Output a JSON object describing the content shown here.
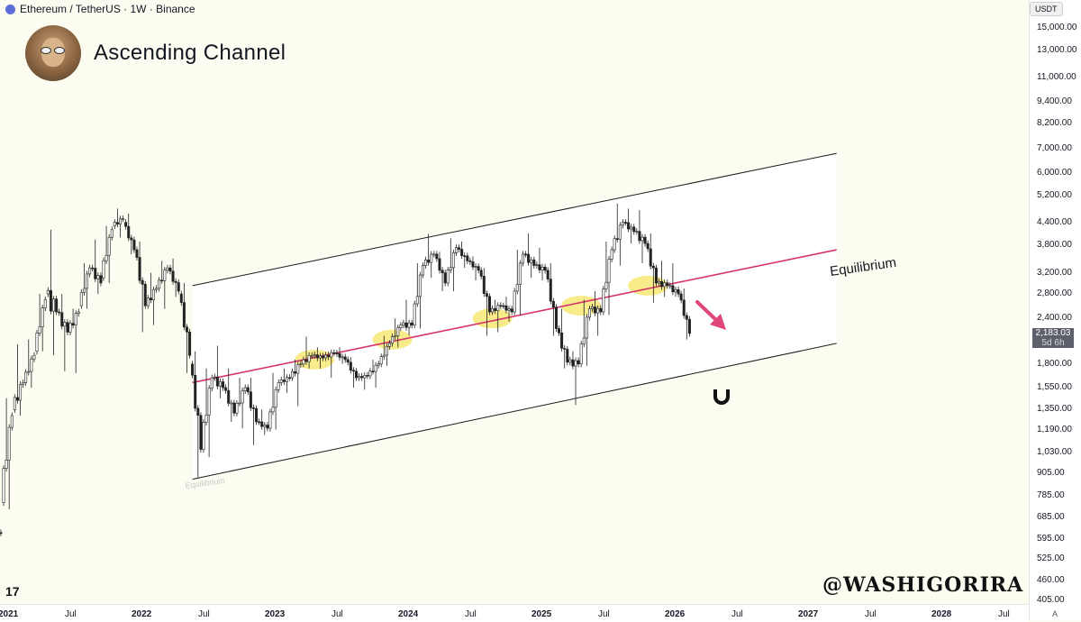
{
  "header": {
    "symbol_line": "Ethereum / TetherUS · 1W · Binance",
    "title": "Ascending Channel"
  },
  "watermark": "@WASHIGORIRA",
  "tv_logo": "17",
  "price_axis": {
    "unit": "USDT",
    "labels": [
      "15,000.00",
      "13,000.00",
      "11,000.00",
      "9,400.00",
      "8,200.00",
      "7,000.00",
      "6,000.00",
      "5,200.00",
      "4,400.00",
      "3,800.00",
      "3,200.00",
      "2,800.00",
      "2,400.00",
      "1,800.00",
      "1,550.00",
      "1,350.00",
      "1,190.00",
      "1,030.00",
      "905.00",
      "785.00",
      "685.00",
      "595.00",
      "525.00",
      "460.00",
      "405.00"
    ],
    "current_price": "2,183.03",
    "countdown": "5d 6h",
    "auto": "A"
  },
  "time_axis": {
    "labels": [
      {
        "text": "2021",
        "year": true
      },
      {
        "text": "Jul",
        "year": false
      },
      {
        "text": "2022",
        "year": true
      },
      {
        "text": "Jul",
        "year": false
      },
      {
        "text": "2023",
        "year": true
      },
      {
        "text": "Jul",
        "year": false
      },
      {
        "text": "2024",
        "year": true
      },
      {
        "text": "Jul",
        "year": false
      },
      {
        "text": "2025",
        "year": true
      },
      {
        "text": "Jul",
        "year": false
      },
      {
        "text": "2026",
        "year": true
      },
      {
        "text": "Jul",
        "year": false
      },
      {
        "text": "2027",
        "year": true
      },
      {
        "text": "Jul",
        "year": false
      },
      {
        "text": "2028",
        "year": true
      },
      {
        "text": "Jul",
        "year": false
      }
    ]
  },
  "colors": {
    "background": "#fdfcf1",
    "channel_line": "#1a1a1a",
    "channel_fill": "#ffffff",
    "equilibrium_line": "#d6336c",
    "highlight": "#f5e663",
    "arrow": "#e0457b",
    "candle": "#222222"
  },
  "chart_data": {
    "type": "candlestick",
    "title": "Ascending Channel",
    "xlabel": "",
    "ylabel": "",
    "log_scale": true,
    "grid": false,
    "x_range": [
      "2020-12",
      "2028-08"
    ],
    "ylim": [
      405,
      15000
    ],
    "annotations": [
      {
        "type": "label",
        "text": "Equilibrium"
      },
      {
        "type": "label",
        "text": "Equilibrium",
        "faded": true
      },
      {
        "type": "arrow",
        "direction": "down-right"
      },
      {
        "type": "icon",
        "name": "magnet-icon"
      }
    ],
    "channel": {
      "upper": [
        {
          "x": "2022-06",
          "y": 2950
        },
        {
          "x": "2027-04",
          "y": 6800
        }
      ],
      "equilibrium": [
        {
          "x": "2022-06",
          "y": 1600
        },
        {
          "x": "2027-04",
          "y": 3700
        }
      ],
      "lower": [
        {
          "x": "2022-06",
          "y": 870
        },
        {
          "x": "2027-04",
          "y": 2050
        }
      ]
    },
    "highlights": [
      {
        "x": "2023-05",
        "y": 1850
      },
      {
        "x": "2023-12",
        "y": 2100
      },
      {
        "x": "2024-09",
        "y": 2400
      },
      {
        "x": "2025-05",
        "y": 2600
      },
      {
        "x": "2025-11",
        "y": 2950
      }
    ],
    "series": [
      {
        "values": [
          {
            "x": "2020-12",
            "o": 600,
            "h": 640,
            "l": 540,
            "c": 620
          },
          {
            "x": "2021-01",
            "o": 750,
            "h": 1450,
            "l": 720,
            "c": 1300
          },
          {
            "x": "2021-02",
            "o": 1350,
            "h": 2040,
            "l": 1300,
            "c": 1600
          },
          {
            "x": "2021-03",
            "o": 1600,
            "h": 2100,
            "l": 1550,
            "c": 1900
          },
          {
            "x": "2021-04",
            "o": 1950,
            "h": 2800,
            "l": 1950,
            "c": 2700
          },
          {
            "x": "2021-05",
            "o": 2800,
            "h": 4200,
            "l": 1900,
            "c": 2500
          },
          {
            "x": "2021-06",
            "o": 2500,
            "h": 2800,
            "l": 1720,
            "c": 2200
          },
          {
            "x": "2021-07",
            "o": 2200,
            "h": 2550,
            "l": 1700,
            "c": 2500
          },
          {
            "x": "2021-08",
            "o": 2600,
            "h": 3400,
            "l": 2550,
            "c": 3300
          },
          {
            "x": "2021-09",
            "o": 3300,
            "h": 3950,
            "l": 2800,
            "c": 3000
          },
          {
            "x": "2021-10",
            "o": 3100,
            "h": 4300,
            "l": 3000,
            "c": 4200
          },
          {
            "x": "2021-11",
            "o": 4300,
            "h": 4800,
            "l": 4000,
            "c": 4500
          },
          {
            "x": "2021-12",
            "o": 4400,
            "h": 4650,
            "l": 3600,
            "c": 3700
          },
          {
            "x": "2022-01",
            "o": 3700,
            "h": 3900,
            "l": 2200,
            "c": 2600
          },
          {
            "x": "2022-02",
            "o": 2600,
            "h": 3200,
            "l": 2300,
            "c": 2900
          },
          {
            "x": "2022-03",
            "o": 2900,
            "h": 3450,
            "l": 2550,
            "c": 3300
          },
          {
            "x": "2022-04",
            "o": 3300,
            "h": 3500,
            "l": 2750,
            "c": 2850
          },
          {
            "x": "2022-05",
            "o": 2800,
            "h": 3000,
            "l": 1700,
            "c": 1900
          },
          {
            "x": "2022-06",
            "o": 1800,
            "h": 1950,
            "l": 880,
            "c": 1050
          },
          {
            "x": "2022-07",
            "o": 1050,
            "h": 1750,
            "l": 1000,
            "c": 1650
          },
          {
            "x": "2022-08",
            "o": 1650,
            "h": 2020,
            "l": 1450,
            "c": 1550
          },
          {
            "x": "2022-09",
            "o": 1550,
            "h": 1750,
            "l": 1250,
            "c": 1320
          },
          {
            "x": "2022-10",
            "o": 1320,
            "h": 1650,
            "l": 1200,
            "c": 1550
          },
          {
            "x": "2022-11",
            "o": 1550,
            "h": 1650,
            "l": 1080,
            "c": 1250
          },
          {
            "x": "2022-12",
            "o": 1250,
            "h": 1350,
            "l": 1150,
            "c": 1200
          },
          {
            "x": "2023-01",
            "o": 1200,
            "h": 1700,
            "l": 1190,
            "c": 1600
          },
          {
            "x": "2023-02",
            "o": 1600,
            "h": 1750,
            "l": 1500,
            "c": 1650
          },
          {
            "x": "2023-03",
            "o": 1650,
            "h": 1850,
            "l": 1380,
            "c": 1800
          },
          {
            "x": "2023-04",
            "o": 1800,
            "h": 2140,
            "l": 1750,
            "c": 1900
          },
          {
            "x": "2023-05",
            "o": 1900,
            "h": 2000,
            "l": 1750,
            "c": 1870
          },
          {
            "x": "2023-06",
            "o": 1870,
            "h": 1950,
            "l": 1650,
            "c": 1930
          },
          {
            "x": "2023-07",
            "o": 1930,
            "h": 2000,
            "l": 1800,
            "c": 1850
          },
          {
            "x": "2023-08",
            "o": 1850,
            "h": 1880,
            "l": 1550,
            "c": 1650
          },
          {
            "x": "2023-09",
            "o": 1650,
            "h": 1700,
            "l": 1530,
            "c": 1670
          },
          {
            "x": "2023-10",
            "o": 1670,
            "h": 1850,
            "l": 1550,
            "c": 1800
          },
          {
            "x": "2023-11",
            "o": 1800,
            "h": 2150,
            "l": 1780,
            "c": 2050
          },
          {
            "x": "2023-12",
            "o": 2050,
            "h": 2400,
            "l": 2000,
            "c": 2300
          },
          {
            "x": "2024-01",
            "o": 2300,
            "h": 2700,
            "l": 2150,
            "c": 2300
          },
          {
            "x": "2024-02",
            "o": 2300,
            "h": 3400,
            "l": 2250,
            "c": 3350
          },
          {
            "x": "2024-03",
            "o": 3350,
            "h": 4090,
            "l": 3100,
            "c": 3600
          },
          {
            "x": "2024-04",
            "o": 3600,
            "h": 3650,
            "l": 2850,
            "c": 3000
          },
          {
            "x": "2024-05",
            "o": 3000,
            "h": 3980,
            "l": 2850,
            "c": 3750
          },
          {
            "x": "2024-06",
            "o": 3750,
            "h": 3900,
            "l": 3300,
            "c": 3450
          },
          {
            "x": "2024-07",
            "o": 3450,
            "h": 3550,
            "l": 3050,
            "c": 3250
          },
          {
            "x": "2024-08",
            "o": 3250,
            "h": 3300,
            "l": 2150,
            "c": 2500
          },
          {
            "x": "2024-09",
            "o": 2500,
            "h": 2700,
            "l": 2200,
            "c": 2600
          },
          {
            "x": "2024-10",
            "o": 2600,
            "h": 2750,
            "l": 2350,
            "c": 2500
          },
          {
            "x": "2024-11",
            "o": 2500,
            "h": 3700,
            "l": 2450,
            "c": 3600
          },
          {
            "x": "2024-12",
            "o": 3600,
            "h": 4100,
            "l": 3100,
            "c": 3350
          },
          {
            "x": "2025-01",
            "o": 3350,
            "h": 3750,
            "l": 3050,
            "c": 3250
          },
          {
            "x": "2025-02",
            "o": 3250,
            "h": 3400,
            "l": 2150,
            "c": 2250
          },
          {
            "x": "2025-03",
            "o": 2250,
            "h": 2550,
            "l": 1750,
            "c": 1820
          },
          {
            "x": "2025-04",
            "o": 1820,
            "h": 1950,
            "l": 1390,
            "c": 1800
          },
          {
            "x": "2025-05",
            "o": 1800,
            "h": 2700,
            "l": 1780,
            "c": 2550
          },
          {
            "x": "2025-06",
            "o": 2550,
            "h": 2850,
            "l": 2150,
            "c": 2500
          },
          {
            "x": "2025-07",
            "o": 2500,
            "h": 3900,
            "l": 2450,
            "c": 3700
          },
          {
            "x": "2025-08",
            "o": 3700,
            "h": 4950,
            "l": 3350,
            "c": 4400
          },
          {
            "x": "2025-09",
            "o": 4400,
            "h": 4800,
            "l": 3850,
            "c": 4150
          },
          {
            "x": "2025-10",
            "o": 4150,
            "h": 4750,
            "l": 3400,
            "c": 3850
          },
          {
            "x": "2025-11",
            "o": 3850,
            "h": 4100,
            "l": 2650,
            "c": 3000
          },
          {
            "x": "2025-12",
            "o": 3000,
            "h": 3450,
            "l": 2750,
            "c": 2950
          },
          {
            "x": "2026-01",
            "o": 2950,
            "h": 3400,
            "l": 2750,
            "c": 2800
          },
          {
            "x": "2026-02",
            "o": 2800,
            "h": 2900,
            "l": 2100,
            "c": 2183
          }
        ]
      }
    ]
  }
}
